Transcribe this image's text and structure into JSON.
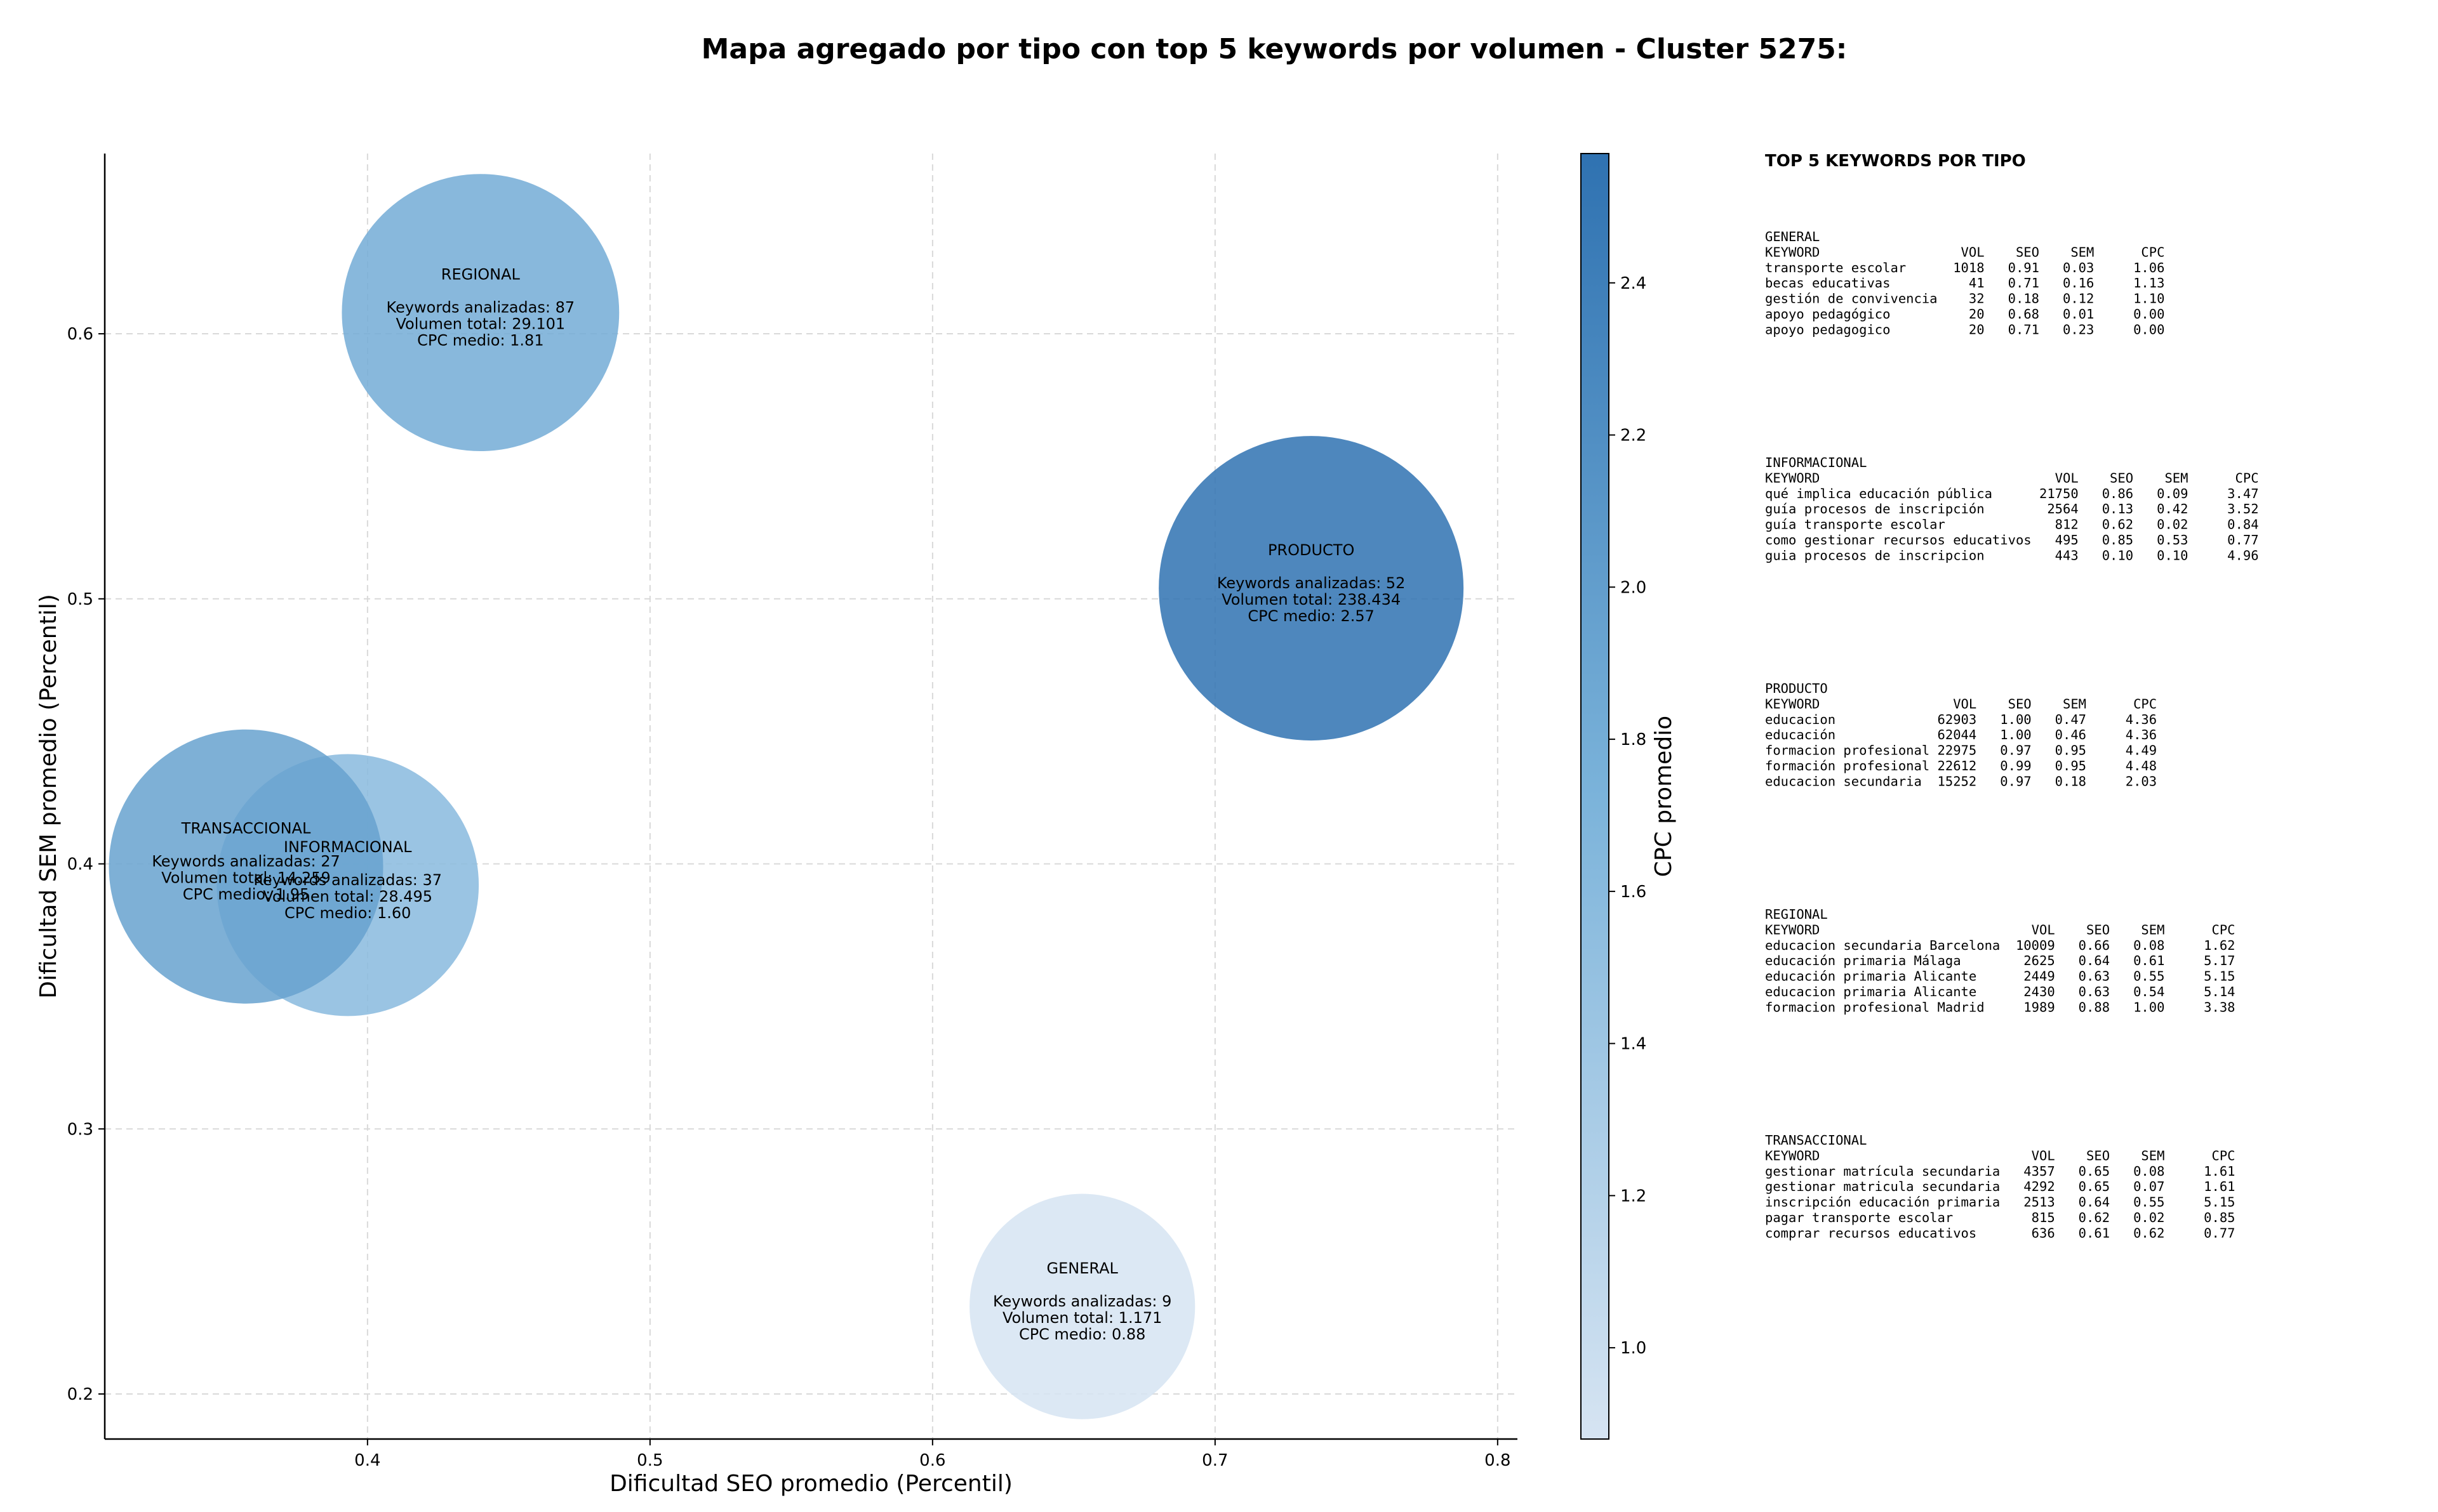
{
  "chart_data": {
    "type": "scatter",
    "title": "Mapa agregado por tipo con top 5 keywords por volumen - Cluster 5275:",
    "xlabel": "Dificultad SEO promedio (Percentil)",
    "ylabel": "Dificultad SEM promedio (Percentil)",
    "xlim": [
      0.307,
      0.807
    ],
    "ylim": [
      0.183,
      0.668
    ],
    "x_ticks": [
      "0.4",
      "0.5",
      "0.6",
      "0.7",
      "0.8"
    ],
    "x_tick_values": [
      0.4,
      0.5,
      0.6,
      0.7,
      0.8
    ],
    "y_ticks": [
      "0.2",
      "0.3",
      "0.4",
      "0.5",
      "0.6"
    ],
    "y_tick_values": [
      0.2,
      0.3,
      0.4,
      0.5,
      0.6
    ],
    "grid": true,
    "colorbar": {
      "label": "CPC promedio",
      "min": 0.88,
      "max": 2.57,
      "ticks": [
        "1.0",
        "1.2",
        "1.4",
        "1.6",
        "1.8",
        "2.0",
        "2.2",
        "2.4"
      ],
      "tick_values": [
        1.0,
        1.2,
        1.4,
        1.6,
        1.8,
        2.0,
        2.2,
        2.4
      ],
      "color_low": "#d6e4f2",
      "color_mid": "#7bb3da",
      "color_high": "#2f72b1"
    },
    "bubbles": [
      {
        "name": "GENERAL",
        "x": 0.653,
        "y": 0.233,
        "keywords": 9,
        "keywords_text": "Keywords analizadas: 9",
        "volume_text": "Volumen total: 1.171",
        "cpc_text": "CPC medio: 0.88",
        "cpc": 0.88,
        "size": 0.74
      },
      {
        "name": "INFORMACIONAL",
        "x": 0.393,
        "y": 0.392,
        "keywords": 37,
        "keywords_text": "Keywords analizadas: 37",
        "volume_text": "Volumen total: 28.495",
        "cpc_text": "CPC medio: 1.60",
        "cpc": 1.6,
        "size": 0.86
      },
      {
        "name": "PRODUCTO",
        "x": 0.734,
        "y": 0.504,
        "keywords": 52,
        "keywords_text": "Keywords analizadas: 52",
        "volume_text": "Volumen total: 238.434",
        "cpc_text": "CPC medio: 2.57",
        "cpc": 2.57,
        "size": 1.0
      },
      {
        "name": "REGIONAL",
        "x": 0.44,
        "y": 0.608,
        "keywords": 87,
        "keywords_text": "Keywords analizadas: 87",
        "volume_text": "Volumen total: 29.101",
        "cpc_text": "CPC medio: 1.81",
        "cpc": 1.81,
        "size": 0.91
      },
      {
        "name": "TRANSACCIONAL",
        "x": 0.357,
        "y": 0.399,
        "keywords": 27,
        "keywords_text": "Keywords analizadas: 27",
        "volume_text": "Volumen total: 14.259",
        "cpc_text": "CPC medio: 1.95",
        "cpc": 1.95,
        "size": 0.9
      }
    ]
  },
  "top_keywords": {
    "heading": "TOP 5 KEYWORDS POR TIPO",
    "groups": [
      {
        "name": "GENERAL",
        "header": "KEYWORD                  VOL    SEO    SEM      CPC",
        "rows": [
          "transporte escolar      1018   0.91   0.03     1.06",
          "becas educativas          41   0.71   0.16     1.13",
          "gestión de convivencia    32   0.18   0.12     1.10",
          "apoyo pedagógico          20   0.68   0.01     0.00",
          "apoyo pedagogico          20   0.71   0.23     0.00"
        ]
      },
      {
        "name": "INFORMACIONAL",
        "header": "KEYWORD                              VOL    SEO    SEM      CPC",
        "rows": [
          "qué implica educación pública      21750   0.86   0.09     3.47",
          "guía procesos de inscripción        2564   0.13   0.42     3.52",
          "guía transporte escolar              812   0.62   0.02     0.84",
          "como gestionar recursos educativos   495   0.85   0.53     0.77",
          "guia procesos de inscripcion         443   0.10   0.10     4.96"
        ]
      },
      {
        "name": "PRODUCTO",
        "header": "KEYWORD                 VOL    SEO    SEM      CPC",
        "rows": [
          "educacion             62903   1.00   0.47     4.36",
          "educación             62044   1.00   0.46     4.36",
          "formacion profesional 22975   0.97   0.95     4.49",
          "formación profesional 22612   0.99   0.95     4.48",
          "educacion secundaria  15252   0.97   0.18     2.03"
        ]
      },
      {
        "name": "REGIONAL",
        "header": "KEYWORD                           VOL    SEO    SEM      CPC",
        "rows": [
          "educacion secundaria Barcelona  10009   0.66   0.08     1.62",
          "educación primaria Málaga        2625   0.64   0.61     5.17",
          "educación primaria Alicante      2449   0.63   0.55     5.15",
          "educacion primaria Alicante      2430   0.63   0.54     5.14",
          "formacion profesional Madrid     1989   0.88   1.00     3.38"
        ]
      },
      {
        "name": "TRANSACCIONAL",
        "header": "KEYWORD                           VOL    SEO    SEM      CPC",
        "rows": [
          "gestionar matrícula secundaria   4357   0.65   0.08     1.61",
          "gestionar matricula secundaria   4292   0.65   0.07     1.61",
          "inscripción educación primaria   2513   0.64   0.55     5.15",
          "pagar transporte escolar          815   0.62   0.02     0.85",
          "comprar recursos educativos       636   0.61   0.62     0.77"
        ]
      }
    ]
  }
}
